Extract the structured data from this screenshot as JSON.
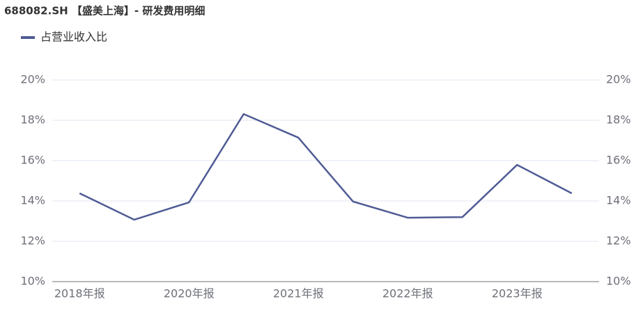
{
  "chart_data": {
    "type": "line",
    "title": "688082.SH 【盛美上海】- 研发费用明细",
    "categories": [
      "2018年报",
      null,
      "2020年报",
      null,
      "2021年报",
      null,
      "2022年报",
      null,
      "2023年报",
      null
    ],
    "series": [
      {
        "name": "占营业收入比",
        "color": "#4f5b95",
        "values": [
          14.38,
          13.07,
          13.93,
          18.31,
          17.14,
          13.97,
          13.17,
          13.2,
          15.79,
          14.38
        ]
      }
    ],
    "ylim": [
      10,
      20
    ],
    "yticks": [
      {
        "value": 10,
        "label": "10%"
      },
      {
        "value": 12,
        "label": "12%"
      },
      {
        "value": 14,
        "label": "14%"
      },
      {
        "value": 16,
        "label": "16%"
      },
      {
        "value": 18,
        "label": "18%"
      },
      {
        "value": 20,
        "label": "20%"
      }
    ],
    "y2lim": [
      10,
      20
    ],
    "y2ticks": [
      {
        "value": 10,
        "label": "10%"
      },
      {
        "value": 12,
        "label": "12%"
      },
      {
        "value": 14,
        "label": "14%"
      },
      {
        "value": 16,
        "label": "16%"
      },
      {
        "value": 18,
        "label": "18%"
      },
      {
        "value": 20,
        "label": "20%"
      }
    ],
    "grid": true
  }
}
